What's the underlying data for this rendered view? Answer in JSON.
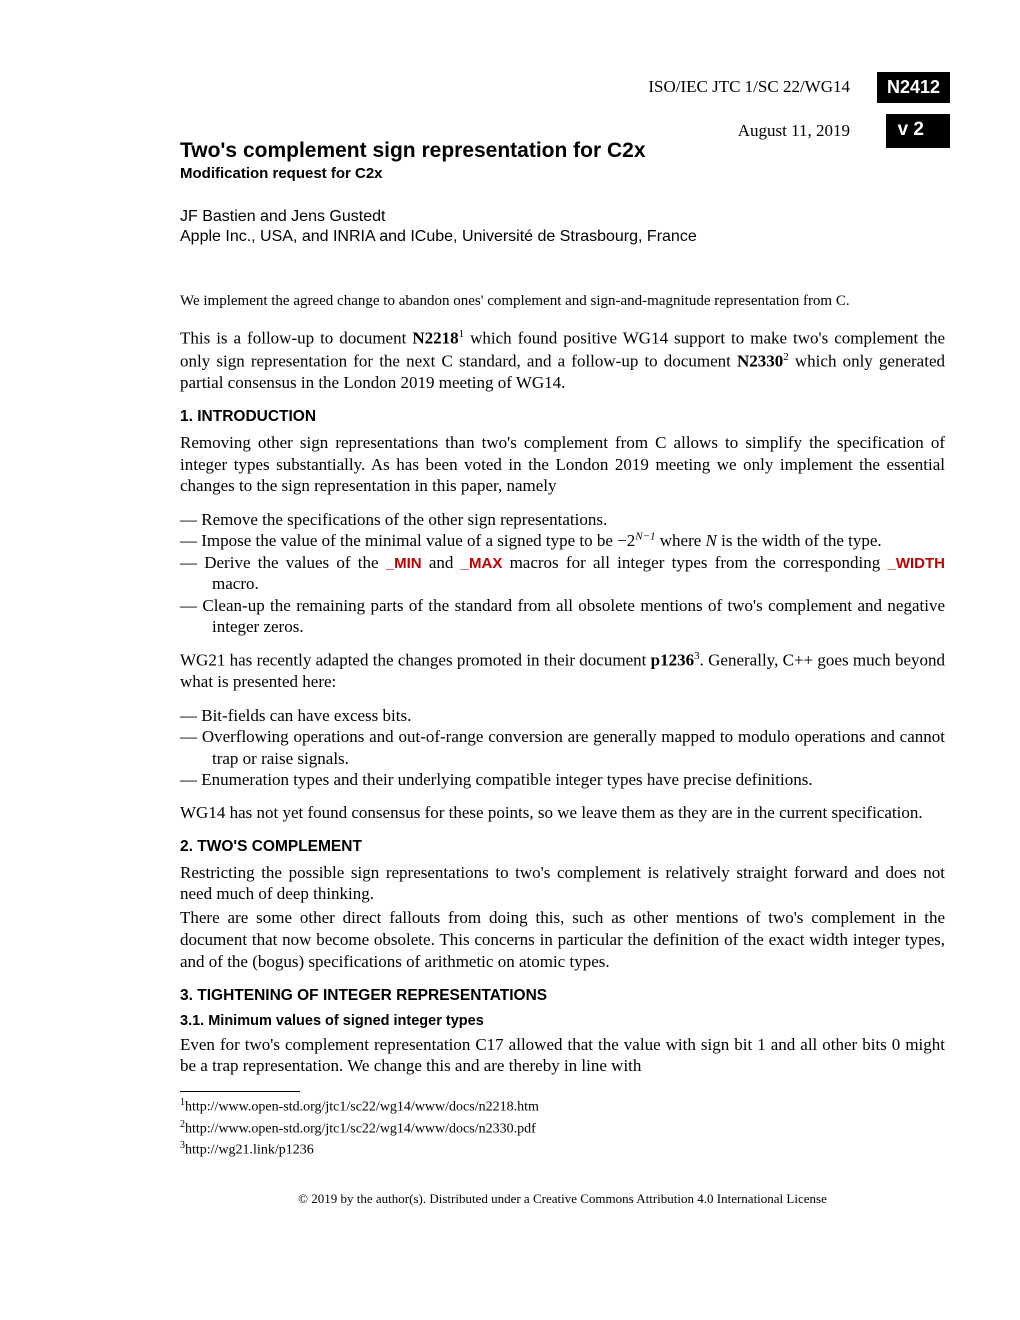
{
  "header": {
    "iso": "ISO/IEC JTC 1/SC 22/WG14",
    "doc_num": "N2412",
    "date": "August 11, 2019",
    "version": "v 2"
  },
  "title": "Two's complement sign representation for C2x",
  "subtitle": "Modification request for C2x",
  "authors": "JF Bastien and Jens Gustedt",
  "affiliation": "Apple Inc., USA, and INRIA and ICube, Université de Strasbourg, France",
  "abstract": "We implement the agreed change to abandon ones' complement and sign-and-magnitude representation from C.",
  "followup_p1": "This is a follow-up to document ",
  "followup_n2218": "N2218",
  "followup_sup1": "1",
  "followup_p2": " which found positive WG14 support to make two's complement the only sign representation for the next C standard, and a follow-up to document ",
  "followup_n2330": "N2330",
  "followup_sup2": "2",
  "followup_p3": " which only generated partial consensus in the London 2019 meeting of WG14.",
  "s1_head": "1. INTRODUCTION",
  "s1_p1": "Removing other sign representations than two's complement from C allows to simplify the specification of integer types substantially. As has been voted in the London 2019 meeting we only implement the essential changes to the sign representation in this paper, namely",
  "s1_li1": "Remove the specifications of the other sign representations.",
  "s1_li2a": "Impose the value of the minimal value of a signed type to be −2",
  "s1_li2_exp": "N−1",
  "s1_li2b": " where ",
  "s1_li2_n": "N",
  "s1_li2c": " is the width of the type.",
  "s1_li3a": "Derive the values of the ",
  "s1_li3_min": "_MIN",
  "s1_li3b": " and ",
  "s1_li3_max": "_MAX",
  "s1_li3c": " macros for all integer types from the corresponding ",
  "s1_li3_width": "_WIDTH",
  "s1_li3d": " macro.",
  "s1_li4": "Clean-up the remaining parts of the standard from all obsolete mentions of two's complement and negative integer zeros.",
  "s1_p2a": "WG21 has recently adapted the changes promoted in their document ",
  "s1_p2_p1236": "p1236",
  "s1_p2_sup3": "3",
  "s1_p2b": ". Generally, C++ goes much beyond what is presented here:",
  "s1b_li1": "Bit-fields can have excess bits.",
  "s1b_li2": "Overflowing operations and out-of-range conversion are generally mapped to modulo operations and cannot trap or raise signals.",
  "s1b_li3": "Enumeration types and their underlying compatible integer types have precise definitions.",
  "s1_p3": "WG14 has not yet found consensus for these points, so we leave them as they are in the current specification.",
  "s2_head": "2. TWO'S COMPLEMENT",
  "s2_p1": "Restricting the possible sign representations to two's complement is relatively straight forward and does not need much of deep thinking.",
  "s2_p2": "There are some other direct fallouts from doing this, such as other mentions of two's complement in the document that now become obsolete. This concerns in particular the definition of the exact width integer types, and of the (bogus) specifications of arithmetic on atomic types.",
  "s3_head": "3. TIGHTENING OF INTEGER REPRESENTATIONS",
  "s3_1_head": "3.1. Minimum values of signed integer types",
  "s3_p1": "Even for two's complement representation C17 allowed that the value with sign bit 1 and all other bits 0 might be a trap representation. We change this and are thereby in line with",
  "fn1_sup": "1",
  "fn1": "http://www.open-std.org/jtc1/sc22/wg14/www/docs/n2218.htm",
  "fn2_sup": "2",
  "fn2": "http://www.open-std.org/jtc1/sc22/wg14/www/docs/n2330.pdf",
  "fn3_sup": "3",
  "fn3": "http://wg21.link/p1236",
  "license": "© 2019 by the author(s). Distributed under a Creative Commons Attribution 4.0 International License"
}
